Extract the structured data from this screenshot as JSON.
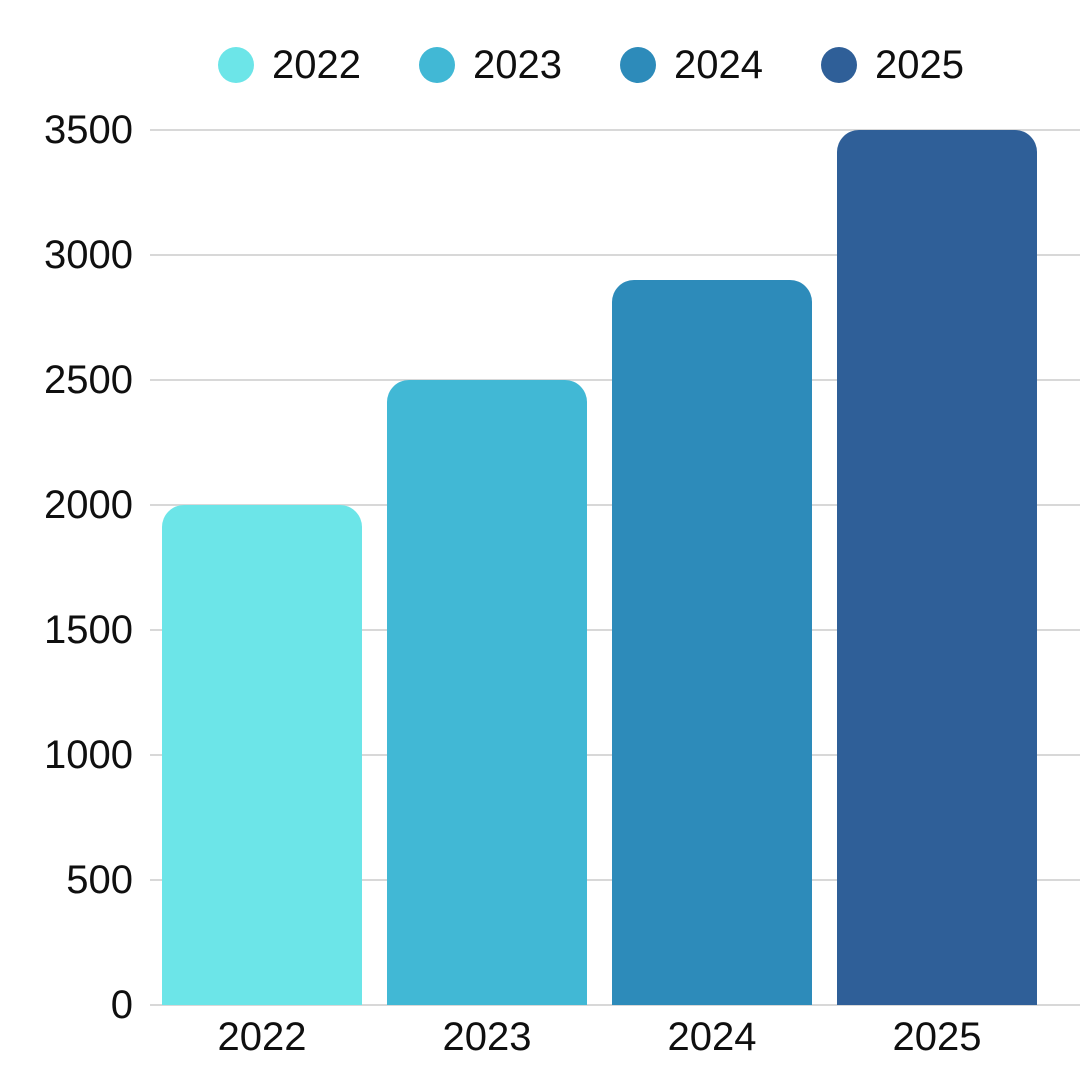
{
  "chart_data": {
    "type": "bar",
    "categories": [
      "2022",
      "2023",
      "2024",
      "2025"
    ],
    "values": [
      2000,
      2500,
      2900,
      3500
    ],
    "bar_colors": [
      "#6CE5E8",
      "#41B8D5",
      "#2D8BBA",
      "#2F5F98"
    ],
    "legend": {
      "position": "top",
      "items": [
        {
          "label": "2022",
          "color": "#6CE5E8"
        },
        {
          "label": "2023",
          "color": "#41B8D5"
        },
        {
          "label": "2024",
          "color": "#2D8BBA"
        },
        {
          "label": "2025",
          "color": "#2F5F98"
        }
      ]
    },
    "y_ticks": [
      0,
      500,
      1000,
      1500,
      2000,
      2500,
      3000,
      3500
    ],
    "ylim": [
      0,
      3500
    ],
    "grid": true,
    "gridline_color": "#d8d8d8",
    "text_color": "#0f0f0f",
    "background_color": "#ffffff"
  }
}
